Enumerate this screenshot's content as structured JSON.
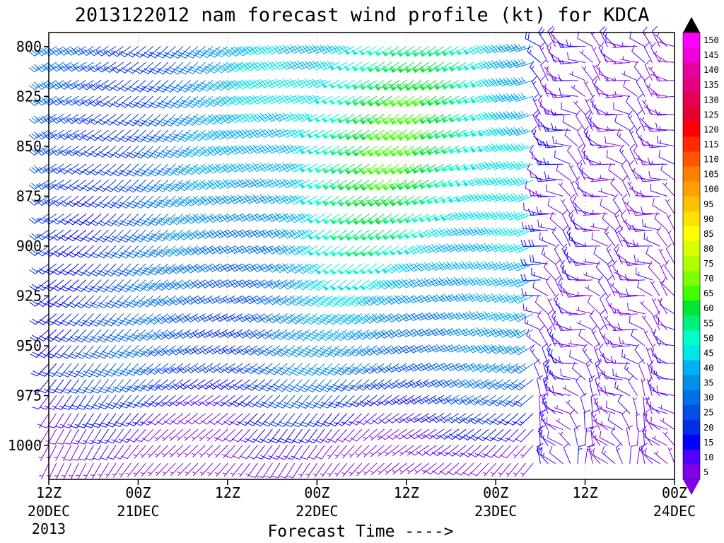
{
  "chart_data": {
    "type": "wind barb time-height profile",
    "title": "2013122012 nam forecast wind profile (kt) for KDCA",
    "xlabel": "Forecast Time ---->",
    "ylabel": "",
    "x_ticks": [
      {
        "hour": 0,
        "top": "12Z",
        "bottom": "20DEC",
        "extra": "2013"
      },
      {
        "hour": 12,
        "top": "00Z",
        "bottom": "21DEC",
        "extra": ""
      },
      {
        "hour": 24,
        "top": "12Z",
        "bottom": "",
        "extra": ""
      },
      {
        "hour": 36,
        "top": "00Z",
        "bottom": "22DEC",
        "extra": ""
      },
      {
        "hour": 48,
        "top": "12Z",
        "bottom": "",
        "extra": ""
      },
      {
        "hour": 60,
        "top": "00Z",
        "bottom": "23DEC",
        "extra": ""
      },
      {
        "hour": 72,
        "top": "12Z",
        "bottom": "",
        "extra": ""
      },
      {
        "hour": 84,
        "top": "00Z",
        "bottom": "24DEC",
        "extra": ""
      }
    ],
    "xlim_hours": [
      0,
      84
    ],
    "y_ticks": [
      800,
      825,
      850,
      875,
      900,
      925,
      950,
      975,
      1000
    ],
    "ylim_hPa": [
      793,
      1017
    ],
    "y_reversed": true,
    "levels_hPa": [
      800,
      808,
      817,
      825,
      834,
      842,
      850,
      859,
      867,
      875,
      884,
      892,
      900,
      909,
      917,
      925,
      934,
      942,
      950,
      959,
      967,
      975,
      984,
      992,
      1000,
      1009
    ],
    "time_step_hours": 1,
    "speed_units": "kt",
    "barb_convention": "half barb 5 kt, full barb 10 kt, pennant 50 kt",
    "colorbar": {
      "labels": [
        150,
        145,
        140,
        135,
        130,
        125,
        120,
        115,
        110,
        105,
        100,
        95,
        90,
        85,
        80,
        75,
        70,
        65,
        60,
        55,
        50,
        45,
        40,
        35,
        30,
        25,
        20,
        15,
        10,
        5
      ],
      "colors": [
        "#ff00ff",
        "#f200dc",
        "#e6009f",
        "#e60080",
        "#e60050",
        "#e6002b",
        "#ff0000",
        "#ff2a00",
        "#ff5500",
        "#ff7f00",
        "#ffa000",
        "#ffc000",
        "#ffe000",
        "#ffff00",
        "#d8ff00",
        "#b2ff00",
        "#80ff00",
        "#40ff00",
        "#00e632",
        "#00f07a",
        "#00ffc8",
        "#00e6e6",
        "#00b0f0",
        "#0090e6",
        "#0070e6",
        "#0050e6",
        "#0030e6",
        "#0000ff",
        "#5000ff",
        "#8000e6"
      ],
      "extend": "both",
      "top_arrow_color": "#000000",
      "bottom_arrow_color": "#8000e6"
    },
    "synoptic_model": {
      "description": "speed (kt) and meteorological direction (deg, from) sampled per hour t and level p",
      "speed_peak_kt": 62,
      "peak_hour": 48,
      "peak_level_hPa": 845,
      "direction_early_deg": 230,
      "direction_mid_deg": 245,
      "direction_late_deg": 300,
      "frontal_passage_hour": 66,
      "sample_barbs": [
        {
          "hour": 0,
          "level": 800,
          "speed": 30,
          "dir": 230
        },
        {
          "hour": 24,
          "level": 850,
          "speed": 42,
          "dir": 235
        },
        {
          "hour": 48,
          "level": 850,
          "speed": 62,
          "dir": 240
        },
        {
          "hour": 60,
          "level": 900,
          "speed": 48,
          "dir": 245
        },
        {
          "hour": 72,
          "level": 975,
          "speed": 10,
          "dir": 320
        },
        {
          "hour": 84,
          "level": 1000,
          "speed": 12,
          "dir": 310
        }
      ]
    }
  }
}
